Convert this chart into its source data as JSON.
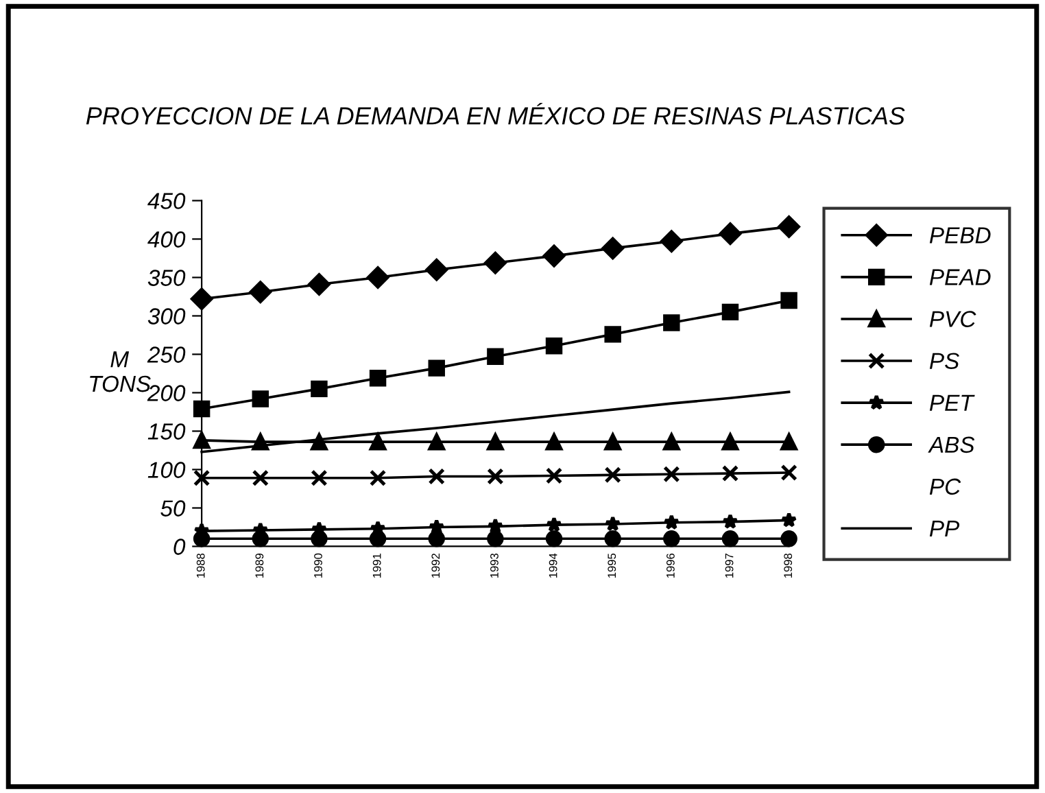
{
  "chart_data": {
    "type": "line",
    "title": "PROYECCION DE LA DEMANDA EN MÉXICO DE RESINAS PLASTICAS",
    "ylabel": "M\nTONS",
    "categories": [
      "1988",
      "1989",
      "1990",
      "1991",
      "1992",
      "1993",
      "1994",
      "1995",
      "1996",
      "1997",
      "1998"
    ],
    "ylim": [
      0,
      450
    ],
    "yticks": [
      0,
      50,
      100,
      150,
      200,
      250,
      300,
      350,
      400,
      450
    ],
    "grid": false,
    "legend": "right",
    "line_style": "solid",
    "series": [
      {
        "name": "PEBD",
        "color": "#000000",
        "marker": "diamond",
        "values": [
          322,
          331,
          341,
          350,
          360,
          369,
          378,
          388,
          397,
          407,
          416
        ]
      },
      {
        "name": "PEAD",
        "color": "#000000",
        "marker": "square",
        "values": [
          179,
          192,
          205,
          219,
          232,
          247,
          261,
          276,
          291,
          305,
          320
        ]
      },
      {
        "name": "PVC",
        "color": "#000000",
        "marker": "triangle",
        "values": [
          138,
          136,
          136,
          136,
          136,
          136,
          136,
          136,
          136,
          136,
          136
        ]
      },
      {
        "name": "PS",
        "color": "#000000",
        "marker": "cross",
        "values": [
          89,
          89,
          89,
          89,
          91,
          91,
          92,
          93,
          94,
          95,
          96
        ]
      },
      {
        "name": "PET",
        "color": "#000000",
        "marker": "star",
        "values": [
          20,
          21,
          22,
          23,
          25,
          26,
          28,
          29,
          31,
          32,
          34
        ]
      },
      {
        "name": "ABS",
        "color": "#000000",
        "marker": "circle",
        "values": [
          10,
          10,
          10,
          10,
          10,
          10,
          10,
          10,
          10,
          10,
          10
        ]
      },
      {
        "name": "PC",
        "marker": "none",
        "values": [
          null,
          null,
          null,
          null,
          null,
          null,
          null,
          null,
          null,
          null,
          null
        ]
      },
      {
        "name": "PP",
        "color": "#000000",
        "marker": "none",
        "values": [
          123,
          131,
          139,
          147,
          154,
          162,
          170,
          178,
          186,
          193,
          201
        ]
      }
    ]
  }
}
